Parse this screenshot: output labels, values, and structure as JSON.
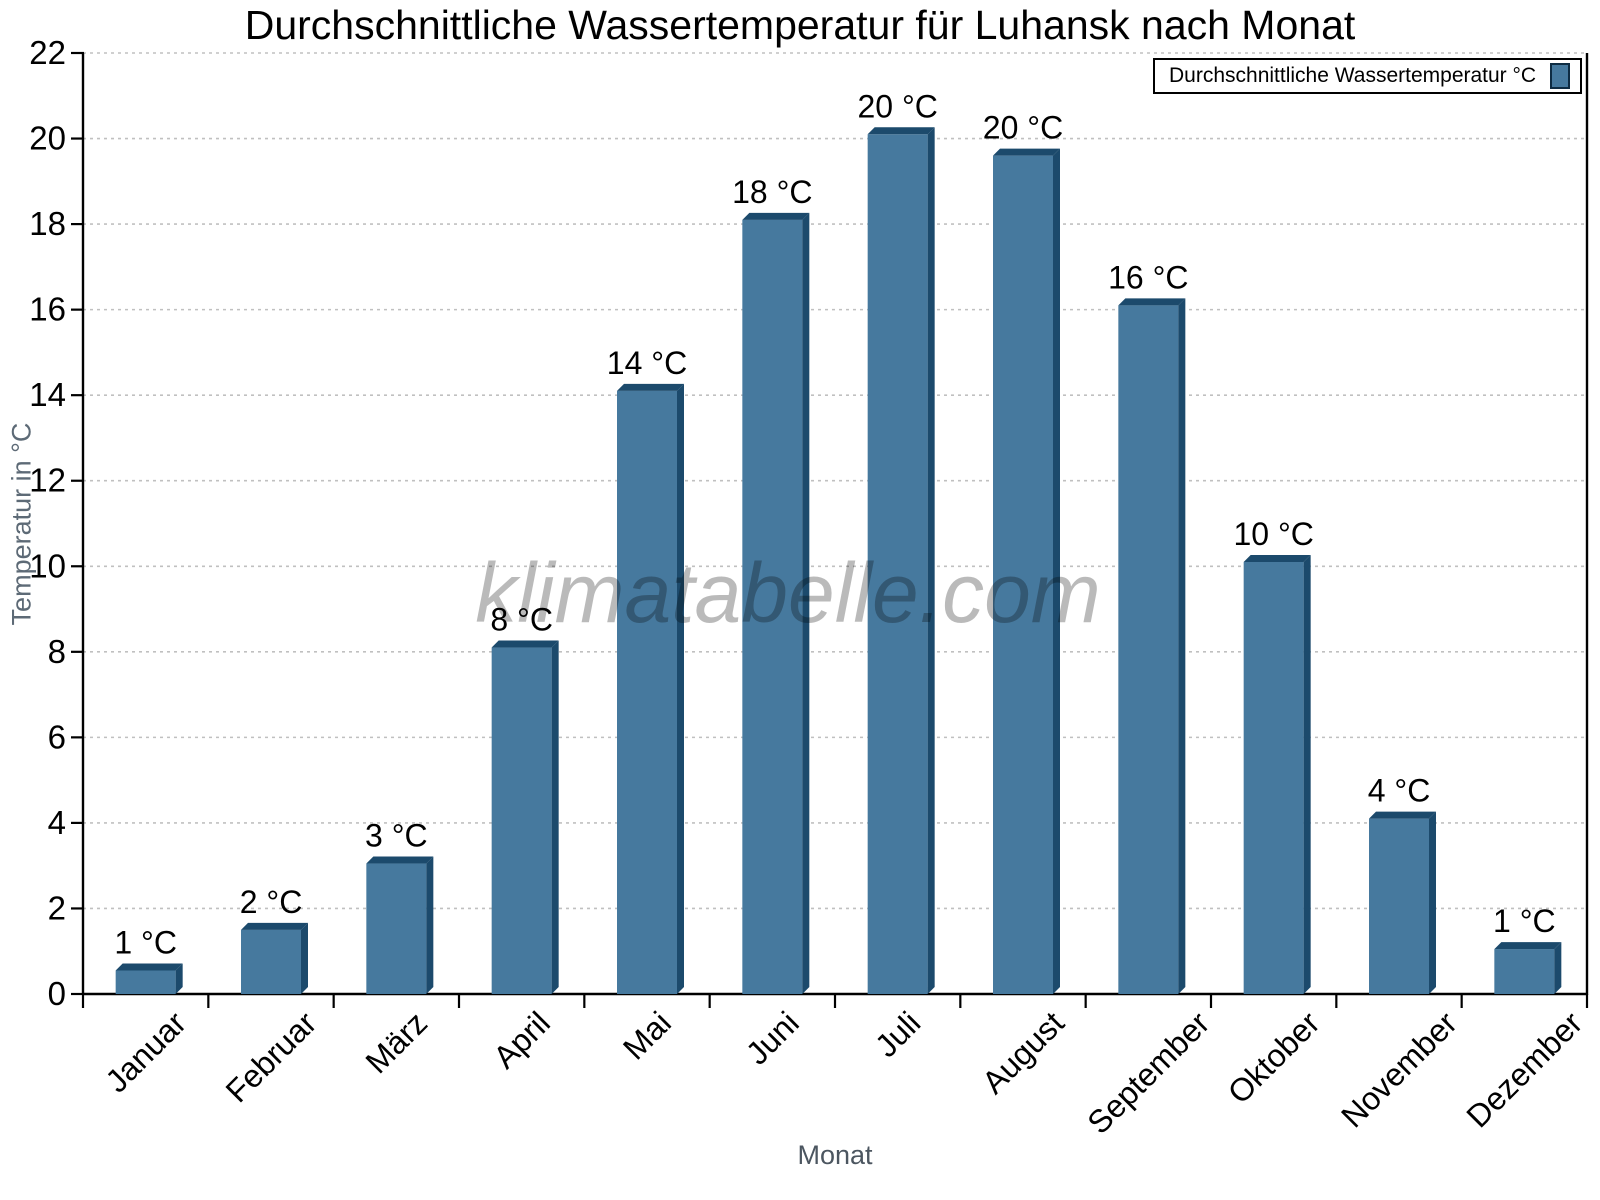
{
  "page_title": "Durchschnittliche Wassertemperatur für Luhansk nach Monat",
  "chart_data": {
    "type": "bar",
    "title": "Durchschnittliche Wassertemperatur für Luhansk nach Monat",
    "xlabel": "Monat",
    "ylabel": "Temperatur in °C",
    "legend": {
      "label": "Durchschnittliche Wassertemperatur °C",
      "position": "top-right"
    },
    "categories": [
      "Januar",
      "Februar",
      "März",
      "April",
      "Mai",
      "Juni",
      "Juli",
      "August",
      "September",
      "Oktober",
      "November",
      "Dezember"
    ],
    "values": [
      0.55,
      1.5,
      3.05,
      8.1,
      14.1,
      18.1,
      20.1,
      19.6,
      16.1,
      10.1,
      4.1,
      1.05
    ],
    "value_labels": [
      "1 °C",
      "2 °C",
      "3 °C",
      "8 °C",
      "14 °C",
      "18 °C",
      "20 °C",
      "20 °C",
      "16 °C",
      "10 °C",
      "4 °C",
      "1 °C"
    ],
    "ylim": [
      0,
      22
    ],
    "ytick_step": 2,
    "grid": "horizontal-dashed",
    "bar_color": "#46799E",
    "bar_shadow_color": "#1C4A6C",
    "gridline_color": "#c0c0c0",
    "watermark": "klimatabelle.com"
  }
}
